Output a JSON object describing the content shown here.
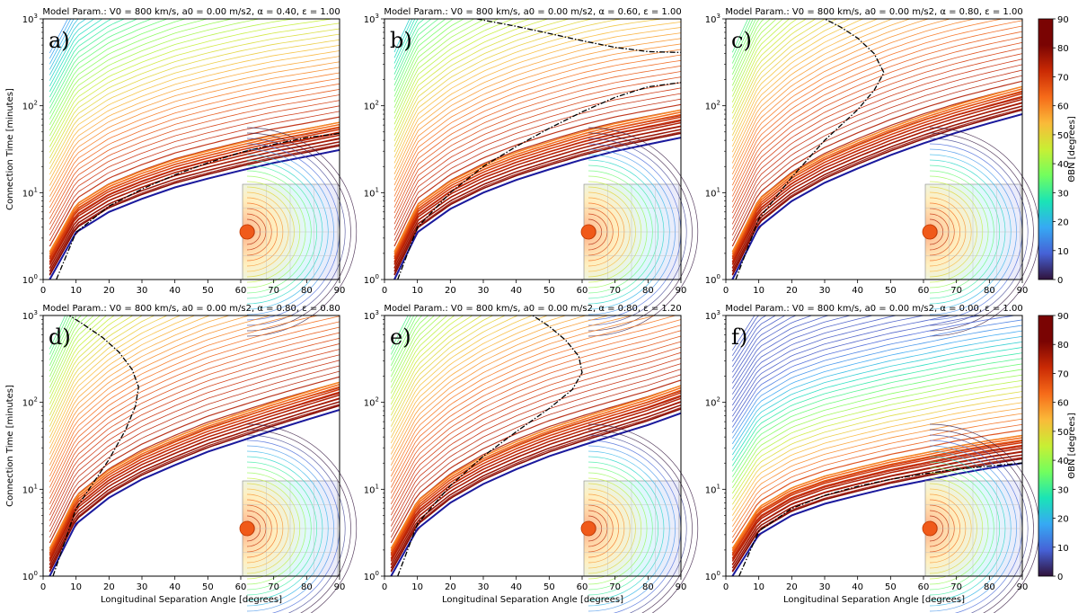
{
  "figure": {
    "xlabel": "Longitudinal Separation Angle [degrees]",
    "ylabel": "Connection Time [minutes]",
    "colorbar_label": "ΘBN [degrees]",
    "colorbar_ticks": [
      "0",
      "10",
      "20",
      "30",
      "40",
      "50",
      "60",
      "70",
      "80",
      "90"
    ]
  },
  "chart_data": [
    {
      "type": "contour",
      "panel": "a)",
      "title": "Model Param.: V0 = 800 km/s, a0 = 0.00 m/s2, α = 0.40, ε = 1.00",
      "params": {
        "V0": 800,
        "a0": 0.0,
        "alpha": 0.4,
        "epsilon": 1.0
      },
      "xlabel": "",
      "ylabel": "Connection Time [minutes]",
      "xlim": [
        0,
        90
      ],
      "ylim": [
        1,
        1000
      ],
      "yscale": "log",
      "x_ticks": [
        "0",
        "10",
        "20",
        "30",
        "40",
        "50",
        "60",
        "70",
        "80",
        "90"
      ],
      "y_ticks": [
        "10^0",
        "10^1",
        "10^2",
        "10^3"
      ],
      "lower_boundary": {
        "x": [
          2,
          10,
          20,
          30,
          40,
          50,
          60,
          70,
          80,
          90
        ],
        "y": [
          1,
          3.5,
          6,
          8.5,
          11.5,
          14.5,
          18,
          22,
          26,
          31
        ]
      },
      "thetaBN_45_curve": {
        "x": [
          4,
          10,
          20,
          30,
          40,
          50,
          60,
          70,
          80,
          90
        ],
        "y": [
          1,
          3.5,
          7,
          11,
          16,
          22,
          29,
          36,
          43,
          48
        ]
      }
    },
    {
      "type": "contour",
      "panel": "b)",
      "title": "Model Param.: V0 = 800 km/s, a0 = 0.00 m/s2, α = 0.60, ε = 1.00",
      "params": {
        "V0": 800,
        "a0": 0.0,
        "alpha": 0.6,
        "epsilon": 1.0
      },
      "xlabel": "",
      "ylabel": "",
      "xlim": [
        0,
        90
      ],
      "ylim": [
        1,
        1000
      ],
      "yscale": "log",
      "x_ticks": [
        "0",
        "10",
        "20",
        "30",
        "40",
        "50",
        "60",
        "70",
        "80",
        "90"
      ],
      "y_ticks": [
        "10^0",
        "10^1",
        "10^2",
        "10^3"
      ],
      "lower_boundary": {
        "x": [
          3,
          10,
          20,
          30,
          40,
          50,
          60,
          70,
          80,
          90
        ],
        "y": [
          1,
          3.5,
          6.5,
          10,
          14,
          18.5,
          24,
          30,
          36,
          43
        ]
      },
      "thetaBN_45_curve": {
        "x": [
          4,
          10,
          20,
          30,
          40,
          50,
          60,
          70,
          80,
          90
        ],
        "y": [
          1,
          4,
          10,
          20,
          34,
          55,
          85,
          125,
          165,
          185
        ]
      },
      "thetaBN_45_upper": {
        "x": [
          28,
          40,
          50,
          60,
          70,
          80,
          90
        ],
        "y": [
          1000,
          820,
          680,
          560,
          470,
          420,
          410
        ]
      }
    },
    {
      "type": "contour",
      "panel": "c)",
      "title": "Model Param.: V0 = 800 km/s, a0 = 0.00 m/s2, α = 0.80, ε = 1.00",
      "params": {
        "V0": 800,
        "a0": 0.0,
        "alpha": 0.8,
        "epsilon": 1.0
      },
      "xlabel": "",
      "ylabel": "",
      "xlim": [
        0,
        90
      ],
      "ylim": [
        1,
        1000
      ],
      "yscale": "log",
      "x_ticks": [
        "0",
        "10",
        "20",
        "30",
        "40",
        "50",
        "60",
        "70",
        "80",
        "90"
      ],
      "y_ticks": [
        "10^0",
        "10^1",
        "10^2",
        "10^3"
      ],
      "lower_boundary": {
        "x": [
          2,
          10,
          20,
          30,
          40,
          50,
          60,
          70,
          80,
          90
        ],
        "y": [
          1,
          4,
          8,
          13,
          19,
          27,
          37,
          49,
          63,
          80
        ]
      },
      "thetaBN_45_curve": {
        "x": [
          3,
          10,
          20,
          30,
          40,
          45,
          48,
          45,
          40,
          35,
          30
        ],
        "y": [
          1,
          5,
          15,
          40,
          90,
          150,
          240,
          400,
          600,
          800,
          1000
        ]
      }
    },
    {
      "type": "contour",
      "panel": "d)",
      "title": "Model Param.: V0 = 800 km/s, a0 = 0.00 m/s2, α = 0.80, ε = 0.80",
      "params": {
        "V0": 800,
        "a0": 0.0,
        "alpha": 0.8,
        "epsilon": 0.8
      },
      "xlabel": "Longitudinal Separation Angle [degrees]",
      "ylabel": "Connection Time [minutes]",
      "xlim": [
        0,
        90
      ],
      "ylim": [
        1,
        1000
      ],
      "yscale": "log",
      "x_ticks": [
        "0",
        "10",
        "20",
        "30",
        "40",
        "50",
        "60",
        "70",
        "80",
        "90"
      ],
      "y_ticks": [
        "10^0",
        "10^1",
        "10^2",
        "10^3"
      ],
      "lower_boundary": {
        "x": [
          2,
          10,
          20,
          30,
          40,
          50,
          60,
          70,
          80,
          90
        ],
        "y": [
          1,
          4,
          8,
          13,
          19,
          27,
          36,
          48,
          63,
          82
        ]
      },
      "thetaBN_45_curve": {
        "x": [
          3,
          10,
          20,
          25,
          28,
          29,
          27,
          23,
          18,
          12,
          8
        ],
        "y": [
          1,
          6,
          22,
          48,
          90,
          150,
          240,
          380,
          560,
          800,
          1000
        ]
      }
    },
    {
      "type": "contour",
      "panel": "e)",
      "title": "Model Param.: V0 = 800 km/s, a0 = 0.00 m/s2, α = 0.80, ε = 1.20",
      "params": {
        "V0": 800,
        "a0": 0.0,
        "alpha": 0.8,
        "epsilon": 1.2
      },
      "xlabel": "Longitudinal Separation Angle [degrees]",
      "ylabel": "",
      "xlim": [
        0,
        90
      ],
      "ylim": [
        1,
        1000
      ],
      "yscale": "log",
      "x_ticks": [
        "0",
        "10",
        "20",
        "30",
        "40",
        "50",
        "60",
        "70",
        "80",
        "90"
      ],
      "y_ticks": [
        "10^0",
        "10^1",
        "10^2",
        "10^3"
      ],
      "lower_boundary": {
        "x": [
          2,
          10,
          20,
          30,
          40,
          50,
          60,
          70,
          80,
          90
        ],
        "y": [
          1,
          3.5,
          7,
          11.5,
          17,
          24,
          32,
          42,
          55,
          75
        ]
      },
      "thetaBN_45_curve": {
        "x": [
          4,
          10,
          20,
          30,
          40,
          50,
          57,
          60,
          59,
          55,
          50,
          45
        ],
        "y": [
          1,
          4,
          11,
          24,
          46,
          85,
          140,
          220,
          340,
          520,
          750,
          1000
        ]
      }
    },
    {
      "type": "contour",
      "panel": "f)",
      "title": "Model Param.: V0 = 800 km/s, a0 = 0.00 m/s2, α = 0.00, ε = 1.00",
      "params": {
        "V0": 800,
        "a0": 0.0,
        "alpha": 0.0,
        "epsilon": 1.0
      },
      "xlabel": "Longitudinal Separation Angle [degrees]",
      "ylabel": "",
      "xlim": [
        0,
        90
      ],
      "ylim": [
        1,
        1000
      ],
      "yscale": "log",
      "x_ticks": [
        "0",
        "10",
        "20",
        "30",
        "40",
        "50",
        "60",
        "70",
        "80",
        "90"
      ],
      "y_ticks": [
        "10^0",
        "10^1",
        "10^2",
        "10^3"
      ],
      "lower_boundary": {
        "x": [
          2,
          10,
          20,
          30,
          40,
          50,
          60,
          70,
          80,
          90
        ],
        "y": [
          1,
          3,
          5,
          6.8,
          8.5,
          10.5,
          12.5,
          15,
          17.5,
          20
        ]
      },
      "thetaBN_45_curve": {
        "x": [
          4,
          10,
          20,
          30,
          40,
          50,
          60,
          70,
          80,
          90
        ],
        "y": [
          1,
          3.3,
          6,
          8.5,
          10.8,
          13,
          15,
          17,
          18.5,
          20
        ]
      }
    }
  ]
}
